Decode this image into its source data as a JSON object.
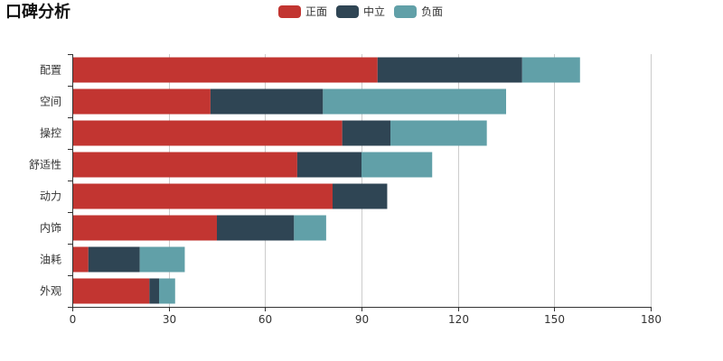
{
  "chart_data": {
    "type": "bar",
    "orientation": "horizontal",
    "stacked": true,
    "title": "口碑分析",
    "categories": [
      "配置",
      "空间",
      "操控",
      "舒适性",
      "动力",
      "内饰",
      "油耗",
      "外观"
    ],
    "series": [
      {
        "name": "正面",
        "color": "#c23531",
        "values": [
          95,
          43,
          84,
          70,
          81,
          45,
          5,
          24
        ]
      },
      {
        "name": "中立",
        "color": "#2f4554",
        "values": [
          45,
          35,
          15,
          20,
          17,
          24,
          16,
          3
        ]
      },
      {
        "name": "负面",
        "color": "#61a0a8",
        "values": [
          18,
          57,
          30,
          22,
          0,
          10,
          14,
          5
        ]
      }
    ],
    "xlim": [
      0,
      180
    ],
    "xticks": [
      "0",
      "30",
      "60",
      "90",
      "120",
      "150",
      "180"
    ],
    "xlabel": "",
    "ylabel": "",
    "grid": true,
    "legend_position": "top-center"
  }
}
